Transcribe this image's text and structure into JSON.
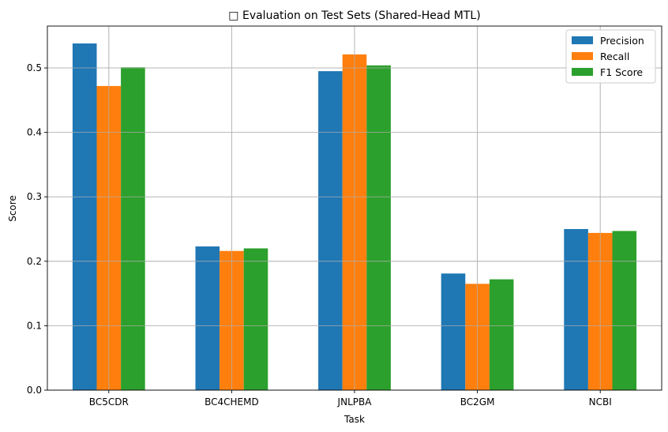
{
  "chart_data": {
    "type": "bar",
    "title": "□ Evaluation on Test Sets (Shared-Head MTL)",
    "xlabel": "Task",
    "ylabel": "Score",
    "categories": [
      "BC5CDR",
      "BC4CHEMD",
      "JNLPBA",
      "BC2GM",
      "NCBI"
    ],
    "series": [
      {
        "name": "Precision",
        "color": "#1f77b4",
        "values": [
          0.538,
          0.223,
          0.495,
          0.181,
          0.25
        ]
      },
      {
        "name": "Recall",
        "color": "#ff7f0e",
        "values": [
          0.472,
          0.216,
          0.521,
          0.165,
          0.244
        ]
      },
      {
        "name": "F1 Score",
        "color": "#2ca02c",
        "values": [
          0.501,
          0.22,
          0.504,
          0.172,
          0.247
        ]
      }
    ],
    "ylim": [
      0,
      0.565
    ],
    "yticks": [
      0.0,
      0.1,
      0.2,
      0.3,
      0.4,
      0.5
    ],
    "ytick_labels": [
      "0.0",
      "0.1",
      "0.2",
      "0.3",
      "0.4",
      "0.5"
    ],
    "grid": true,
    "legend_position": "top-right"
  }
}
